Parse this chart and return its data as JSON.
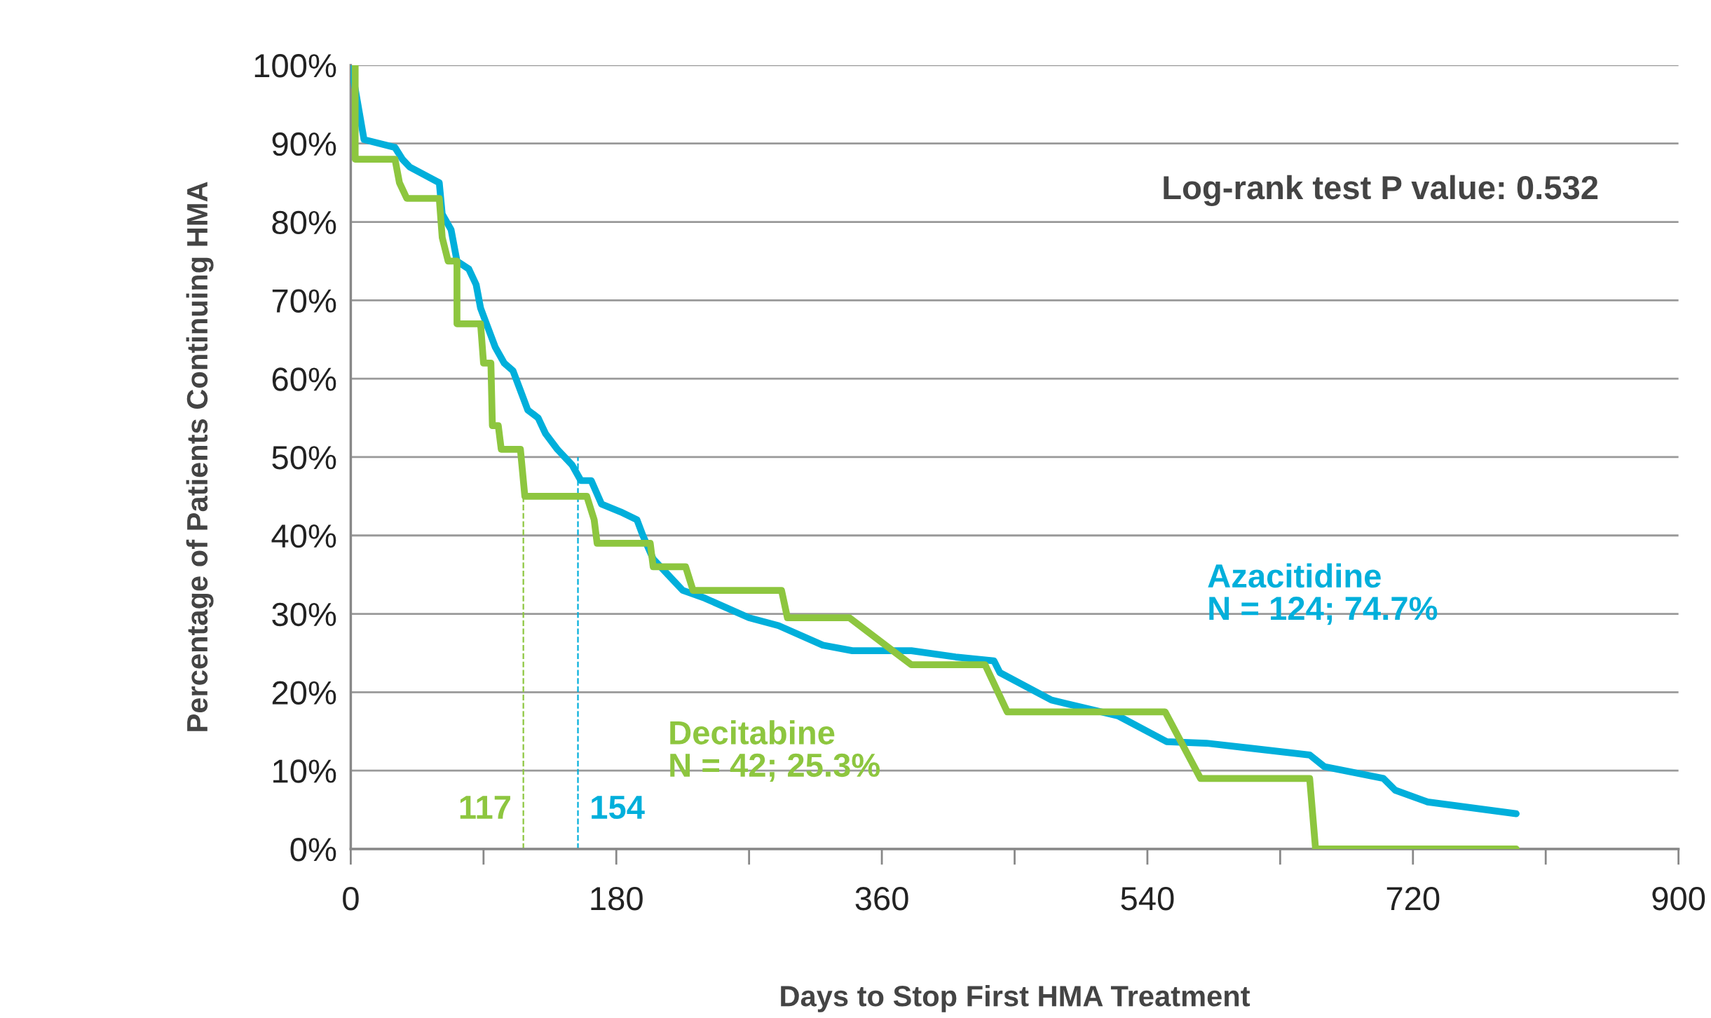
{
  "chart_data": {
    "type": "line",
    "xlabel": "Days to Stop First HMA Treatment",
    "ylabel": "Percentage of Patients Continuing HMA",
    "xlim": [
      0,
      900
    ],
    "xticks": [
      0,
      180,
      360,
      540,
      720,
      900
    ],
    "ylim": [
      0,
      100
    ],
    "yticks": [
      {
        "value": 0,
        "label": "0%"
      },
      {
        "value": 10,
        "label": "10%"
      },
      {
        "value": 20,
        "label": "20%"
      },
      {
        "value": 30,
        "label": "30%"
      },
      {
        "value": 40,
        "label": "40%"
      },
      {
        "value": 50,
        "label": "50%"
      },
      {
        "value": 60,
        "label": "60%"
      },
      {
        "value": 70,
        "label": "70%"
      },
      {
        "value": 80,
        "label": "80%"
      },
      {
        "value": 90,
        "label": "90%"
      },
      {
        "value": 100,
        "label": "100%"
      }
    ],
    "grid": "y",
    "legend": false,
    "marker": "none",
    "series": [
      {
        "name": "Azacitidine",
        "color": "#00afdb",
        "x": [
          0,
          3,
          9,
          30,
          35,
          40,
          60,
          62,
          68,
          72,
          80,
          85,
          88,
          92,
          98,
          104,
          110,
          116,
          120,
          127,
          132,
          140,
          150,
          156,
          163,
          170,
          183,
          194,
          198,
          205,
          215,
          225,
          240,
          270,
          290,
          320,
          340,
          380,
          410,
          436,
          440,
          475,
          520,
          540,
          553,
          580,
          650,
          660,
          700,
          708,
          730,
          790
        ],
        "values": [
          100,
          97,
          90.5,
          89.5,
          88,
          87,
          85,
          81,
          79,
          75,
          74,
          72,
          69,
          67,
          64,
          62,
          61,
          58,
          56,
          55,
          53,
          51,
          49,
          47,
          47,
          44,
          43,
          42,
          40,
          37,
          35,
          33,
          32,
          29.5,
          28.5,
          26,
          25.3,
          25.3,
          24.5,
          24,
          22.5,
          19,
          17,
          15,
          13.7,
          13.5,
          12,
          10.5,
          9,
          7.5,
          6,
          4.5
        ]
      },
      {
        "name": "Decitabine",
        "color": "#8dc63f",
        "x": [
          3,
          3,
          30,
          33,
          38,
          60,
          62,
          66,
          72,
          72,
          88,
          90,
          95,
          96,
          100,
          102,
          115,
          118,
          160,
          165,
          167,
          203,
          205,
          227,
          232,
          292,
          296,
          338,
          380,
          430,
          445,
          552,
          576,
          650,
          654,
          790
        ],
        "values": [
          100,
          88,
          88,
          85,
          83,
          83,
          78,
          75,
          75,
          67,
          67,
          62,
          62,
          54,
          54,
          51,
          51,
          45,
          45,
          42,
          39,
          39,
          36,
          36,
          33,
          33,
          29.5,
          29.5,
          23.5,
          23.5,
          17.5,
          17.5,
          9,
          9,
          0,
          0
        ]
      },
      {
        "color": "#8dc63f",
        "line_style": "dashed",
        "x": [
          117,
          117
        ],
        "values": [
          0,
          50
        ]
      },
      {
        "color": "#00afdb",
        "line_style": "dashed",
        "x": [
          154,
          154
        ],
        "values": [
          0,
          50
        ]
      }
    ],
    "annotations": [
      "Log-rank test P value: 0.532",
      "N = 124; 74.7%",
      "N = 42; 25.3%",
      {
        "text": "117",
        "x": 117,
        "y": 3
      },
      {
        "text": "154",
        "x": 154,
        "y": 3
      }
    ]
  }
}
